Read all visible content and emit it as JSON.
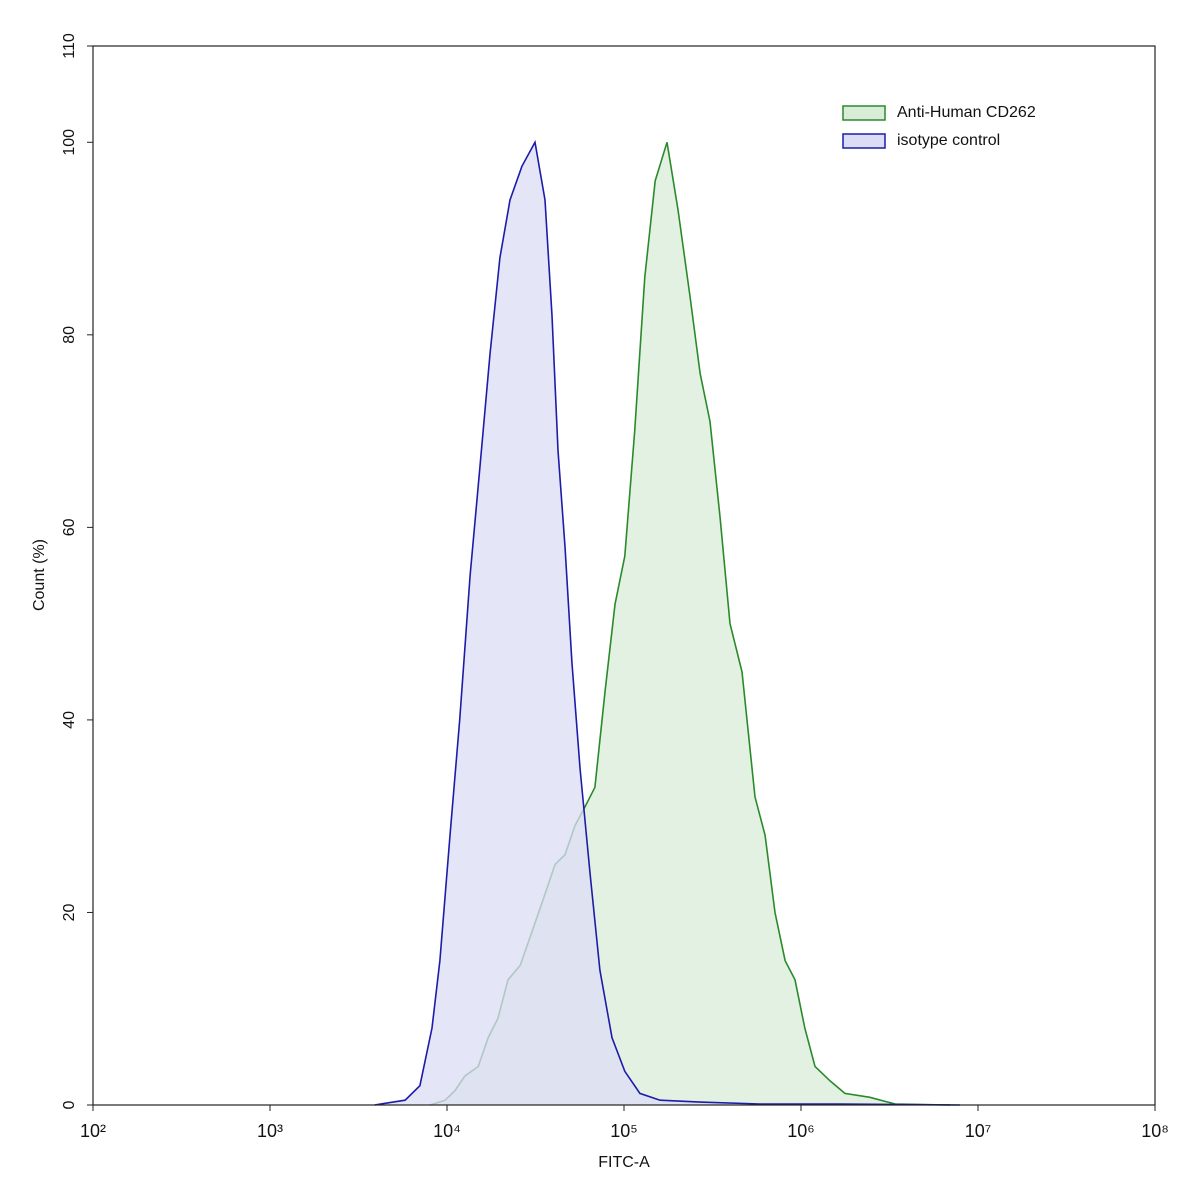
{
  "chart_data": {
    "type": "area",
    "xscale": "log",
    "xlabel": "FITC-A",
    "ylabel": "Count  (%)",
    "xlim": [
      100,
      100000000
    ],
    "xticks": [
      {
        "value": 100,
        "label": "10²"
      },
      {
        "value": 1000,
        "label": "10³"
      },
      {
        "value": 10000,
        "label": "10⁴"
      },
      {
        "value": 100000,
        "label": "10⁵"
      },
      {
        "value": 1000000,
        "label": "10⁶"
      },
      {
        "value": 10000000,
        "label": "10⁷"
      },
      {
        "value": 100000000,
        "label": "10⁸"
      }
    ],
    "ylim": [
      0,
      110
    ],
    "yticks": [
      0,
      20,
      40,
      60,
      80,
      100,
      110
    ],
    "legend": "upper right",
    "series": [
      {
        "name": "Anti-Human CD262",
        "color": "#2a8a2a",
        "fill": "#d8ecd8",
        "x": [
          8020,
          9750,
          11100,
          12600,
          15000,
          17100,
          19400,
          22100,
          25900,
          30200,
          34400,
          40800,
          46400,
          52800,
          60300,
          68500,
          78200,
          88900,
          101000,
          115000,
          131000,
          150000,
          175000,
          202000,
          236000,
          269000,
          306000,
          349000,
          397000,
          464000,
          550000,
          627000,
          713000,
          813000,
          925000,
          1050000,
          1200000,
          1460000,
          1770000,
          2450000,
          3400000,
          6950000
        ],
        "values": [
          0,
          0.5,
          1.5,
          3,
          4,
          7,
          9,
          13,
          14.5,
          18,
          21,
          25,
          26,
          29,
          31,
          33,
          43,
          52,
          57,
          70,
          86,
          96,
          100,
          93,
          84,
          76,
          71,
          61,
          50,
          45,
          32,
          28,
          20,
          15,
          13,
          8,
          4,
          2.5,
          1.2,
          0.8,
          0.1,
          0
        ]
      },
      {
        "name": "isotype control",
        "color": "#1c1ca8",
        "fill": "#dcdcf6",
        "x": [
          3900,
          5800,
          7030,
          8230,
          9120,
          10400,
          11800,
          13500,
          15300,
          17500,
          19900,
          22700,
          26500,
          31400,
          35800,
          39200,
          42400,
          46400,
          50800,
          56400,
          64300,
          73100,
          85500,
          101000,
          123000,
          160000,
          269000,
          586000,
          1660000,
          7900000
        ],
        "values": [
          0,
          0.5,
          2,
          8,
          15,
          28,
          40,
          55,
          66,
          78,
          88,
          94,
          97.5,
          100,
          94,
          82,
          68,
          58,
          46,
          35,
          24,
          14,
          7,
          3.5,
          1.2,
          0.5,
          0.3,
          0.1,
          0.1,
          0
        ]
      }
    ]
  }
}
